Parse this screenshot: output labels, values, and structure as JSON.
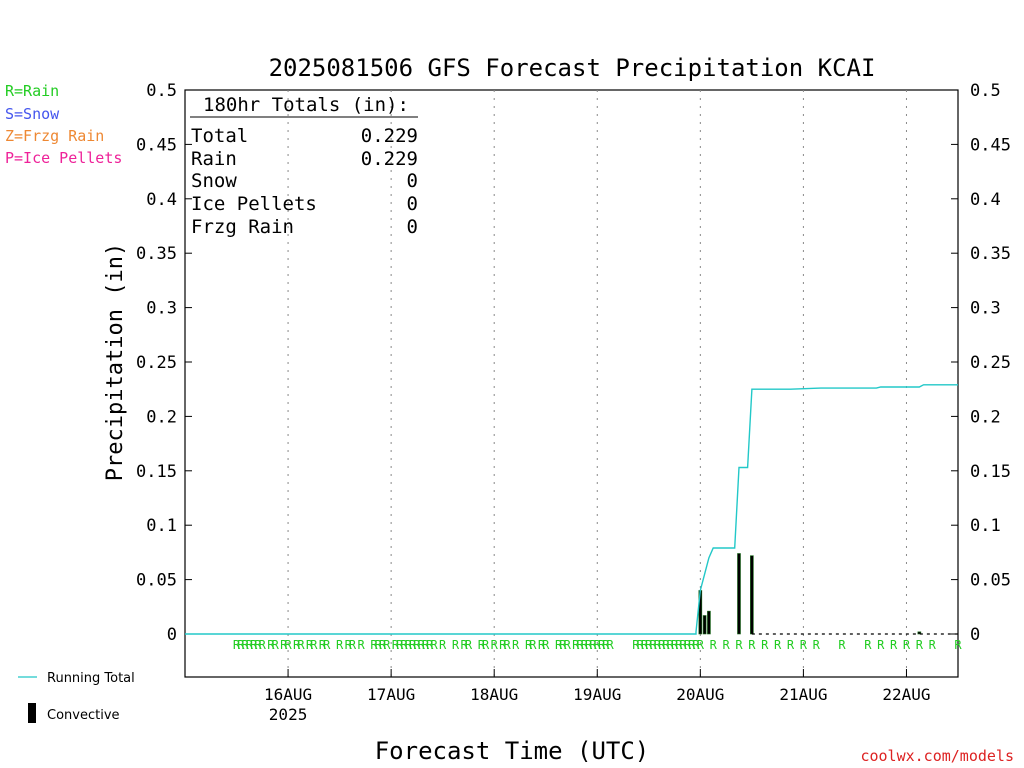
{
  "chart_data": {
    "type": "line",
    "title": "2025081506 GFS Forecast Precipitation KCAI",
    "xlabel": "Forecast Time (UTC)",
    "ylabel": "Precipitation (in)",
    "ylim": [
      0,
      0.5
    ],
    "y_ticks": [
      "0",
      "0.05",
      "0.1",
      "0.15",
      "0.2",
      "0.25",
      "0.3",
      "0.35",
      "0.4",
      "0.45",
      "0.5"
    ],
    "x_range_hours": [
      -6,
      174
    ],
    "x_ticks": [
      {
        "hour": 18,
        "label": "16AUG",
        "sublabel": "2025"
      },
      {
        "hour": 42,
        "label": "17AUG",
        "sublabel": ""
      },
      {
        "hour": 66,
        "label": "18AUG",
        "sublabel": ""
      },
      {
        "hour": 90,
        "label": "19AUG",
        "sublabel": ""
      },
      {
        "hour": 114,
        "label": "20AUG",
        "sublabel": ""
      },
      {
        "hour": 138,
        "label": "21AUG",
        "sublabel": ""
      },
      {
        "hour": 162,
        "label": "22AUG",
        "sublabel": ""
      }
    ],
    "grid": "vertical dotted at day boundaries",
    "legend": {
      "precip_types": [
        {
          "text": "R=Rain",
          "color": "#22cc22"
        },
        {
          "text": "S=Snow",
          "color": "#4455ee"
        },
        {
          "text": "Z=Frzg Rain",
          "color": "#ee8833"
        },
        {
          "text": "P=Ice Pellets",
          "color": "#ee2299"
        }
      ],
      "running_total_label": "Running Total",
      "convective_label": "Convective"
    },
    "totals_box": {
      "header": "180hr Totals (in):",
      "rows": [
        {
          "label": "Total",
          "value": "0.229"
        },
        {
          "label": "Rain",
          "value": "0.229"
        },
        {
          "label": "Snow",
          "value": "0"
        },
        {
          "label": "Ice Pellets",
          "value": "0"
        },
        {
          "label": "Frzg Rain",
          "value": "0"
        }
      ]
    },
    "running_total": {
      "name": "Running Total",
      "color": "#22c8c8",
      "points": [
        [
          -6,
          0
        ],
        [
          113,
          0
        ],
        [
          113,
          0.002
        ],
        [
          114,
          0.04
        ],
        [
          115,
          0.055
        ],
        [
          116,
          0.07
        ],
        [
          117,
          0.079
        ],
        [
          122,
          0.079
        ],
        [
          123,
          0.153
        ],
        [
          125,
          0.153
        ],
        [
          126,
          0.225
        ],
        [
          135,
          0.225
        ],
        [
          142,
          0.226
        ],
        [
          155,
          0.226
        ],
        [
          156,
          0.227
        ],
        [
          165,
          0.227
        ],
        [
          166,
          0.229
        ],
        [
          174,
          0.229
        ]
      ]
    },
    "convective": {
      "name": "Convective",
      "color": "#000000",
      "bars": [
        {
          "hour": 114,
          "value": 0.04
        },
        {
          "hour": 115,
          "value": 0.017
        },
        {
          "hour": 116,
          "value": 0.021
        },
        {
          "hour": 123,
          "value": 0.074
        },
        {
          "hour": 126,
          "value": 0.072
        },
        {
          "hour": 165,
          "value": 0.002
        }
      ]
    },
    "rain_marks": {
      "symbol": "R",
      "color": "#22cc22",
      "hours": [
        6,
        7,
        8,
        9,
        10,
        11,
        12,
        14,
        15,
        17,
        18,
        20,
        21,
        23,
        24,
        26,
        27,
        30,
        32,
        33,
        35,
        38,
        39,
        40,
        41,
        43,
        44,
        45,
        46,
        47,
        48,
        49,
        50,
        51,
        52,
        54,
        57,
        59,
        60,
        63,
        64,
        66,
        68,
        69,
        71,
        74,
        75,
        77,
        78,
        81,
        82,
        83,
        85,
        86,
        87,
        88,
        89,
        90,
        91,
        92,
        93,
        99,
        100,
        101,
        102,
        103,
        104,
        105,
        106,
        107,
        108,
        109,
        110,
        111,
        112,
        113,
        114,
        117,
        120,
        123,
        126,
        129,
        132,
        135,
        138,
        141,
        147,
        153,
        156,
        159,
        162,
        165,
        168,
        174
      ]
    }
  },
  "footer": {
    "credit": "coolwx.com/models"
  }
}
